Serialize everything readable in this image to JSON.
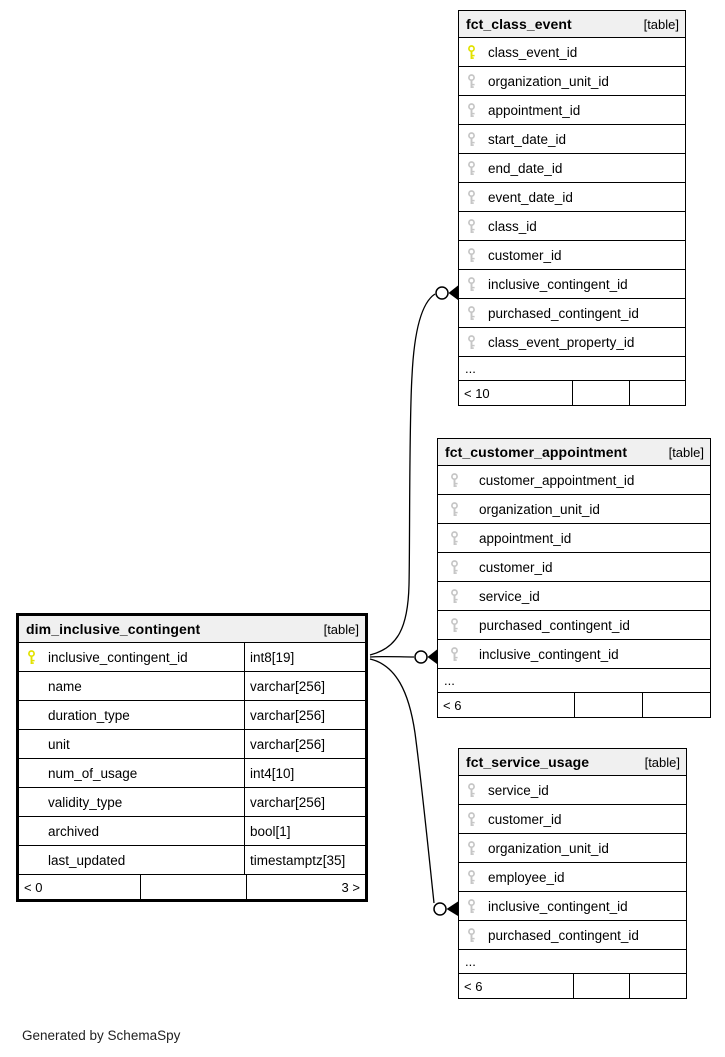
{
  "page": {
    "footer_note": "Generated by SchemaSpy",
    "background": "#ffffff"
  },
  "colors": {
    "pk_key": "#e2e200",
    "fk_key": "#c6c6c6",
    "header_bg": "#f0f0f0",
    "border": "#000000"
  },
  "tables": [
    {
      "id": "fct_class_event",
      "name": "fct_class_event",
      "badge": "[table]",
      "columns": [
        {
          "name": "class_event_id",
          "key": "pk"
        },
        {
          "name": "organization_unit_id",
          "key": "fk"
        },
        {
          "name": "appointment_id",
          "key": "fk"
        },
        {
          "name": "start_date_id",
          "key": "fk"
        },
        {
          "name": "end_date_id",
          "key": "fk"
        },
        {
          "name": "event_date_id",
          "key": "fk"
        },
        {
          "name": "class_id",
          "key": "fk"
        },
        {
          "name": "customer_id",
          "key": "fk"
        },
        {
          "name": "inclusive_contingent_id",
          "key": "fk"
        },
        {
          "name": "purchased_contingent_id",
          "key": "fk"
        },
        {
          "name": "class_event_property_id",
          "key": "fk"
        }
      ],
      "ellipsis": "...",
      "footer": {
        "left": "< 10",
        "middle": "",
        "right": ""
      }
    },
    {
      "id": "fct_customer_appointment",
      "name": "fct_customer_appointment",
      "badge": "[table]",
      "columns": [
        {
          "name": "customer_appointment_id",
          "key": "fk"
        },
        {
          "name": "organization_unit_id",
          "key": "fk"
        },
        {
          "name": "appointment_id",
          "key": "fk"
        },
        {
          "name": "customer_id",
          "key": "fk"
        },
        {
          "name": "service_id",
          "key": "fk"
        },
        {
          "name": "purchased_contingent_id",
          "key": "fk"
        },
        {
          "name": "inclusive_contingent_id",
          "key": "fk"
        }
      ],
      "ellipsis": "...",
      "footer": {
        "left": "< 6",
        "middle": "",
        "right": ""
      }
    },
    {
      "id": "fct_service_usage",
      "name": "fct_service_usage",
      "badge": "[table]",
      "columns": [
        {
          "name": "service_id",
          "key": "fk"
        },
        {
          "name": "customer_id",
          "key": "fk"
        },
        {
          "name": "organization_unit_id",
          "key": "fk"
        },
        {
          "name": "employee_id",
          "key": "fk"
        },
        {
          "name": "inclusive_contingent_id",
          "key": "fk"
        },
        {
          "name": "purchased_contingent_id",
          "key": "fk"
        }
      ],
      "ellipsis": "...",
      "footer": {
        "left": "< 6",
        "middle": "",
        "right": ""
      }
    },
    {
      "id": "dim_inclusive_contingent",
      "name": "dim_inclusive_contingent",
      "badge": "[table]",
      "columns": [
        {
          "name": "inclusive_contingent_id",
          "type": "int8[19]",
          "key": "pk"
        },
        {
          "name": "name",
          "type": "varchar[256]"
        },
        {
          "name": "duration_type",
          "type": "varchar[256]"
        },
        {
          "name": "unit",
          "type": "varchar[256]"
        },
        {
          "name": "num_of_usage",
          "type": "int4[10]"
        },
        {
          "name": "validity_type",
          "type": "varchar[256]"
        },
        {
          "name": "archived",
          "type": "bool[1]"
        },
        {
          "name": "last_updated",
          "type": "timestamptz[35]"
        }
      ],
      "footer": {
        "left": "< 0",
        "middle": "",
        "right": "3 >"
      }
    }
  ],
  "relationships": [
    {
      "from_table": "dim_inclusive_contingent",
      "from_column": "inclusive_contingent_id",
      "to_table": "fct_class_event",
      "to_column": "inclusive_contingent_id"
    },
    {
      "from_table": "dim_inclusive_contingent",
      "from_column": "inclusive_contingent_id",
      "to_table": "fct_customer_appointment",
      "to_column": "inclusive_contingent_id"
    },
    {
      "from_table": "dim_inclusive_contingent",
      "from_column": "inclusive_contingent_id",
      "to_table": "fct_service_usage",
      "to_column": "inclusive_contingent_id"
    }
  ]
}
